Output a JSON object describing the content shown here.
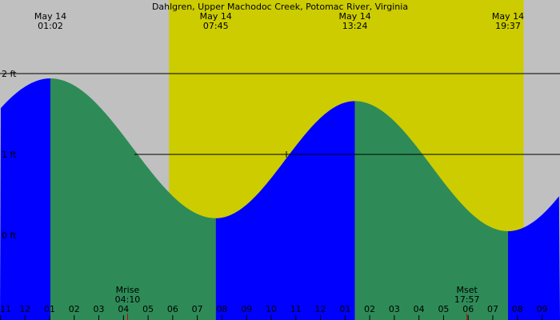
{
  "colors": {
    "night": "#c0c0c0",
    "day": "#cccc00",
    "rising": "#0000ff",
    "falling": "#2e8b57",
    "line": "#000000",
    "tick_red": "#cc0000"
  },
  "chart_data": {
    "type": "area",
    "title": "Dahlgren, Upper Machodoc Creek, Potomac River, Virginia",
    "xlabel": "",
    "ylabel": "",
    "x_unit": "hour of day (May 13 23:00 to May 14 21:40)",
    "xlim": [
      -1.0,
      21.67
    ],
    "ylim": [
      -0.98,
      2.92
    ],
    "y_ticks": [
      {
        "label": "2 ft",
        "value": 2
      },
      {
        "label": "1 ft",
        "value": 1
      },
      {
        "label": "0 ft",
        "value": 0
      }
    ],
    "tide_extrema": [
      {
        "date": "May 14",
        "time": "01:02",
        "hour": 1.033,
        "height": 1.94,
        "kind": "high"
      },
      {
        "date": "May 14",
        "time": "07:45",
        "hour": 7.75,
        "height": 0.21,
        "kind": "low"
      },
      {
        "date": "May 14",
        "time": "13:24",
        "hour": 13.4,
        "height": 1.66,
        "kind": "high"
      },
      {
        "date": "May 14",
        "time": "19:37",
        "hour": 19.617,
        "height": 0.05,
        "kind": "low"
      }
    ],
    "daylight": {
      "start_hour": 5.85,
      "end_hour": 20.25
    },
    "moon_events": [
      {
        "name": "Mrise",
        "time": "04:10",
        "hour": 4.167
      },
      {
        "name": "Mset",
        "time": "17:57",
        "hour": 17.95
      }
    ],
    "hour_ticks": [
      {
        "label": "11",
        "hour": -1
      },
      {
        "label": "12",
        "hour": 0
      },
      {
        "label": "01",
        "hour": 1
      },
      {
        "label": "02",
        "hour": 2
      },
      {
        "label": "03",
        "hour": 3
      },
      {
        "label": "04",
        "hour": 4
      },
      {
        "label": "05",
        "hour": 5
      },
      {
        "label": "06",
        "hour": 6
      },
      {
        "label": "07",
        "hour": 7
      },
      {
        "label": "08",
        "hour": 8
      },
      {
        "label": "09",
        "hour": 9
      },
      {
        "label": "10",
        "hour": 10
      },
      {
        "label": "11",
        "hour": 11
      },
      {
        "label": "12",
        "hour": 12
      },
      {
        "label": "01",
        "hour": 13
      },
      {
        "label": "02",
        "hour": 14
      },
      {
        "label": "03",
        "hour": 15
      },
      {
        "label": "04",
        "hour": 16
      },
      {
        "label": "05",
        "hour": 17
      },
      {
        "label": "06",
        "hour": 18
      },
      {
        "label": "07",
        "hour": 19
      },
      {
        "label": "08",
        "hour": 20
      },
      {
        "label": "09",
        "hour": 21
      }
    ]
  }
}
